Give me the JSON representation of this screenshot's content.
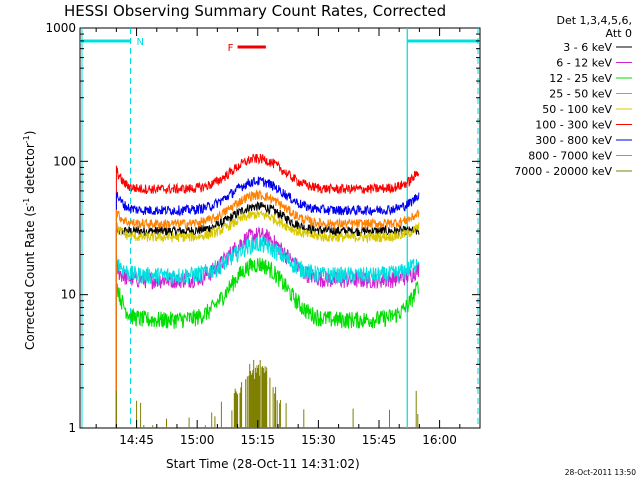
{
  "chart_data": {
    "type": "line",
    "title": "HESSI Observing Summary Count Rates, Corrected",
    "xlabel": "Start Time (28-Oct-11 14:31:02)",
    "ylabel_main": "Corrected Count Rate (s",
    "ylabel_sup1": "-1",
    "ylabel_mid": " detector",
    "ylabel_sup2": "-1",
    "ylabel_end": ")",
    "y_scale": "log",
    "ylim": [
      1,
      1000
    ],
    "xlim_minutes_after_1431": [
      0,
      99
    ],
    "x_ticks": [
      {
        "label": "14:45",
        "t": 14
      },
      {
        "label": "15:00",
        "t": 29
      },
      {
        "label": "15:15",
        "t": 44
      },
      {
        "label": "15:30",
        "t": 59
      },
      {
        "label": "15:45",
        "t": 74
      },
      {
        "label": "16:00",
        "t": 89
      }
    ],
    "y_ticks": [
      {
        "label": "1",
        "v": 1
      },
      {
        "label": "10",
        "v": 10
      },
      {
        "label": "100",
        "v": 100
      },
      {
        "label": "1000",
        "v": 1000
      }
    ],
    "legend_header": [
      "Det 1,3,4,5,6,",
      "Att 0"
    ],
    "legend_placement": "right, outside plot",
    "data_window_minutes": [
      9,
      84
    ],
    "series": [
      {
        "name": "3 - 6 keV",
        "color": "#000000",
        "base": 30,
        "peak": 46,
        "edge_rise": 0
      },
      {
        "name": "6 - 12 keV",
        "color": "#d020d0",
        "base": 13,
        "peak": 28,
        "edge_rise": 3
      },
      {
        "name": "12 - 25 keV",
        "color": "#00dd00",
        "base": 6.5,
        "peak": 17,
        "edge_rise": 6
      },
      {
        "name": "25 - 50 keV",
        "color": "#00e0e0",
        "base": 14,
        "peak": 24,
        "edge_rise": 5
      },
      {
        "name": "50 - 100 keV",
        "color": "#d8c800",
        "base": 27,
        "peak": 40,
        "edge_rise": 6
      },
      {
        "name": "100 - 300 keV",
        "color": "#ff0000",
        "base": 62,
        "peak": 105,
        "edge_rise": 25
      },
      {
        "name": "300 - 800 keV",
        "color": "#0000ee",
        "base": 43,
        "peak": 71,
        "edge_rise": 15
      },
      {
        "name": "800 - 7000 keV",
        "color": "#ff8000",
        "base": 34,
        "peak": 56,
        "edge_rise": 8
      },
      {
        "name": "7000 - 20000 keV",
        "color": "#808000",
        "base": 1,
        "peak": 2.8,
        "edge_rise": 0
      }
    ],
    "night_periods": [
      {
        "label": "N",
        "start": -5,
        "end": 12.5
      },
      {
        "label": "",
        "start": 81,
        "end": 104
      }
    ],
    "flare_marker": {
      "label": "F",
      "start": 39,
      "end": 46,
      "color": "#ee0000"
    },
    "night_color": "#00e0e0"
  },
  "timestamp": "28-Oct-2011 13:50"
}
